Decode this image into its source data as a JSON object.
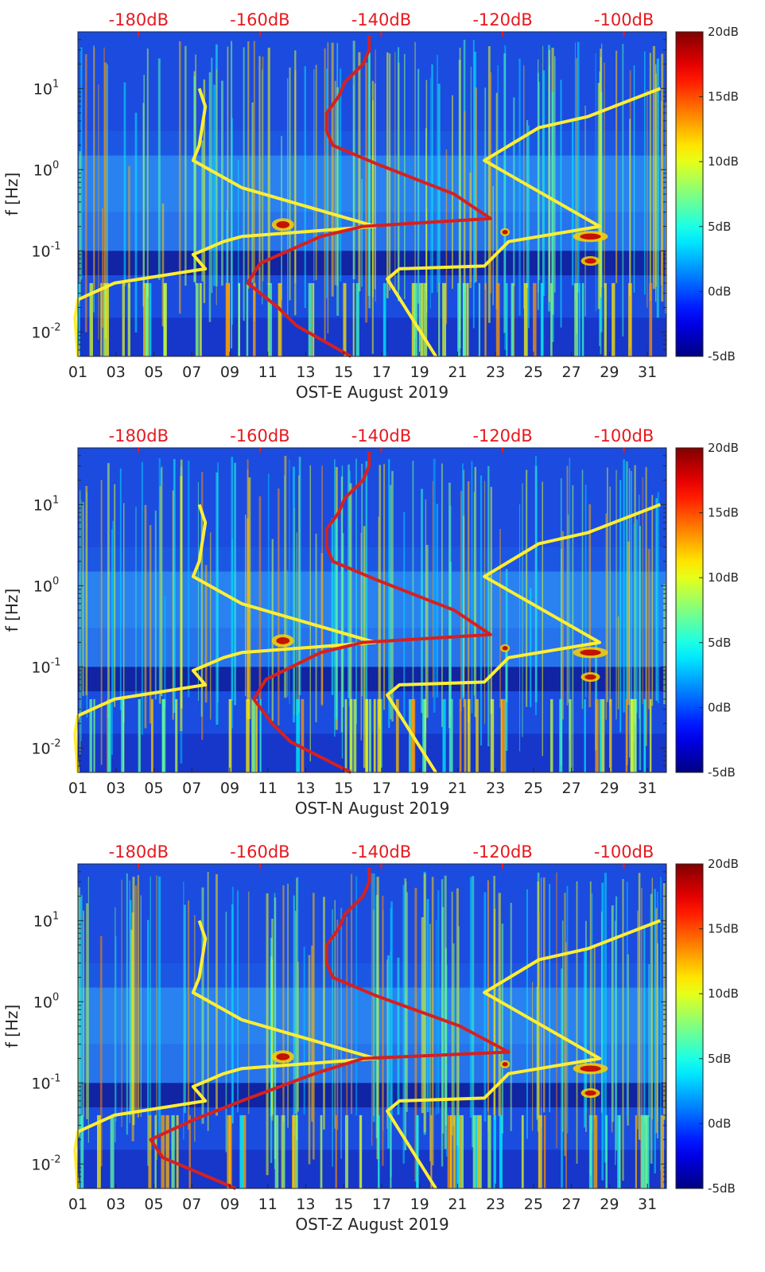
{
  "chart_data": [
    {
      "type": "heatmap",
      "xlabel": "OST-E August 2019",
      "ylabel": "f [Hz]",
      "x_ticks": [
        "01",
        "03",
        "05",
        "07",
        "09",
        "11",
        "13",
        "15",
        "17",
        "19",
        "21",
        "23",
        "25",
        "27",
        "29",
        "31"
      ],
      "xlim": [
        1,
        32
      ],
      "ylim": [
        0.005,
        50
      ],
      "y_scale": "log",
      "y_ticks": [
        "10^-2",
        "10^-1",
        "10^0",
        "10^1"
      ],
      "top_axis_ticks": [
        "-180dB",
        "-160dB",
        "-140dB",
        "-120dB",
        "-100dB"
      ],
      "top_axis_range": [
        -190,
        -93
      ],
      "colorbar": {
        "ticks": [
          "20dB",
          "15dB",
          "10dB",
          "5dB",
          "0dB",
          "-5dB"
        ],
        "range": [
          -5,
          20
        ],
        "colormap": "jet"
      },
      "series": [
        {
          "color": "#ffee33",
          "points": [
            [
              -190,
              0.005
            ],
            [
              -190.5,
              0.015
            ],
            [
              -190,
              0.025
            ],
            [
              -184,
              0.04
            ],
            [
              -169,
              0.06
            ],
            [
              -171,
              0.09
            ],
            [
              -166,
              0.13
            ],
            [
              -163,
              0.15
            ],
            [
              -141,
              0.2
            ],
            [
              -163,
              0.6
            ],
            [
              -171,
              1.3
            ],
            [
              -170,
              2
            ],
            [
              -169,
              6
            ],
            [
              -170,
              10
            ]
          ]
        },
        {
          "color": "#ffee33",
          "points": [
            [
              -131,
              0.005
            ],
            [
              -139,
              0.045
            ],
            [
              -137,
              0.06
            ],
            [
              -123,
              0.065
            ],
            [
              -119,
              0.13
            ],
            [
              -104,
              0.2
            ],
            [
              -123,
              1.3
            ],
            [
              -114,
              3.3
            ],
            [
              -106,
              4.5
            ],
            [
              -94,
              10
            ]
          ]
        },
        {
          "color": "#d62020",
          "points": [
            [
              -145,
              0.005
            ],
            [
              -154,
              0.012
            ],
            [
              -157,
              0.02
            ],
            [
              -162,
              0.04
            ],
            [
              -160,
              0.07
            ],
            [
              -150,
              0.15
            ],
            [
              -143,
              0.2
            ],
            [
              -122,
              0.25
            ],
            [
              -128,
              0.5
            ],
            [
              -141,
              1.2
            ],
            [
              -148,
              2
            ],
            [
              -149,
              3
            ],
            [
              -149,
              5
            ],
            [
              -147,
              8
            ],
            [
              -146,
              12
            ],
            [
              -143,
              20
            ],
            [
              -142,
              30
            ],
            [
              -142,
              45
            ]
          ]
        }
      ]
    },
    {
      "type": "heatmap",
      "xlabel": "OST-N August 2019",
      "ylabel": "f [Hz]",
      "x_ticks": [
        "01",
        "03",
        "05",
        "07",
        "09",
        "11",
        "13",
        "15",
        "17",
        "19",
        "21",
        "23",
        "25",
        "27",
        "29",
        "31"
      ],
      "xlim": [
        1,
        32
      ],
      "ylim": [
        0.005,
        50
      ],
      "y_scale": "log",
      "y_ticks": [
        "10^-2",
        "10^-1",
        "10^0",
        "10^1"
      ],
      "top_axis_ticks": [
        "-180dB",
        "-160dB",
        "-140dB",
        "-120dB",
        "-100dB"
      ],
      "top_axis_range": [
        -190,
        -93
      ],
      "colorbar": {
        "ticks": [
          "20dB",
          "15dB",
          "10dB",
          "5dB",
          "0dB",
          "-5dB"
        ],
        "range": [
          -5,
          20
        ],
        "colormap": "jet"
      },
      "series": [
        {
          "color": "#ffee33",
          "points": [
            [
              -190,
              0.005
            ],
            [
              -190.5,
              0.015
            ],
            [
              -190,
              0.025
            ],
            [
              -184,
              0.04
            ],
            [
              -169,
              0.06
            ],
            [
              -171,
              0.09
            ],
            [
              -166,
              0.13
            ],
            [
              -163,
              0.15
            ],
            [
              -141,
              0.2
            ],
            [
              -163,
              0.6
            ],
            [
              -171,
              1.3
            ],
            [
              -170,
              2
            ],
            [
              -169,
              6
            ],
            [
              -170,
              10
            ]
          ]
        },
        {
          "color": "#ffee33",
          "points": [
            [
              -131,
              0.005
            ],
            [
              -139,
              0.045
            ],
            [
              -137,
              0.06
            ],
            [
              -123,
              0.065
            ],
            [
              -119,
              0.13
            ],
            [
              -104,
              0.2
            ],
            [
              -123,
              1.3
            ],
            [
              -114,
              3.3
            ],
            [
              -106,
              4.5
            ],
            [
              -94,
              10
            ]
          ]
        },
        {
          "color": "#d62020",
          "points": [
            [
              -145,
              0.005
            ],
            [
              -155,
              0.012
            ],
            [
              -158,
              0.02
            ],
            [
              -161,
              0.04
            ],
            [
              -159,
              0.07
            ],
            [
              -150,
              0.15
            ],
            [
              -143,
              0.2
            ],
            [
              -122,
              0.25
            ],
            [
              -128,
              0.5
            ],
            [
              -141,
              1.2
            ],
            [
              -148,
              2
            ],
            [
              -149,
              3
            ],
            [
              -149,
              5
            ],
            [
              -147,
              8
            ],
            [
              -146,
              12
            ],
            [
              -143,
              20
            ],
            [
              -142,
              30
            ],
            [
              -142,
              45
            ]
          ]
        }
      ]
    },
    {
      "type": "heatmap",
      "xlabel": "OST-Z August 2019",
      "ylabel": "f [Hz]",
      "x_ticks": [
        "01",
        "03",
        "05",
        "07",
        "09",
        "11",
        "13",
        "15",
        "17",
        "19",
        "21",
        "23",
        "25",
        "27",
        "29",
        "31"
      ],
      "xlim": [
        1,
        32
      ],
      "ylim": [
        0.005,
        50
      ],
      "y_scale": "log",
      "y_ticks": [
        "10^-2",
        "10^-1",
        "10^0",
        "10^1"
      ],
      "top_axis_ticks": [
        "-180dB",
        "-160dB",
        "-140dB",
        "-120dB",
        "-100dB"
      ],
      "top_axis_range": [
        -190,
        -93
      ],
      "colorbar": {
        "ticks": [
          "20dB",
          "15dB",
          "10dB",
          "5dB",
          "0dB",
          "-5dB"
        ],
        "range": [
          -5,
          20
        ],
        "colormap": "jet"
      },
      "series": [
        {
          "color": "#ffee33",
          "points": [
            [
              -190,
              0.005
            ],
            [
              -190.5,
              0.015
            ],
            [
              -190,
              0.025
            ],
            [
              -184,
              0.04
            ],
            [
              -169,
              0.06
            ],
            [
              -171,
              0.09
            ],
            [
              -166,
              0.13
            ],
            [
              -163,
              0.15
            ],
            [
              -141,
              0.2
            ],
            [
              -163,
              0.6
            ],
            [
              -171,
              1.3
            ],
            [
              -170,
              2
            ],
            [
              -169,
              6
            ],
            [
              -170,
              10
            ]
          ]
        },
        {
          "color": "#ffee33",
          "points": [
            [
              -131,
              0.005
            ],
            [
              -139,
              0.045
            ],
            [
              -137,
              0.06
            ],
            [
              -123,
              0.065
            ],
            [
              -119,
              0.13
            ],
            [
              -104,
              0.2
            ],
            [
              -123,
              1.3
            ],
            [
              -114,
              3.3
            ],
            [
              -106,
              4.5
            ],
            [
              -94,
              10
            ]
          ]
        },
        {
          "color": "#d62020",
          "points": [
            [
              -164,
              0.005
            ],
            [
              -176,
              0.012
            ],
            [
              -178,
              0.02
            ],
            [
              -171,
              0.035
            ],
            [
              -163,
              0.06
            ],
            [
              -151,
              0.13
            ],
            [
              -143,
              0.2
            ],
            [
              -119,
              0.24
            ],
            [
              -127,
              0.5
            ],
            [
              -141,
              1.2
            ],
            [
              -148,
              2
            ],
            [
              -149,
              3
            ],
            [
              -149,
              5
            ],
            [
              -147,
              8
            ],
            [
              -146,
              12
            ],
            [
              -143,
              20
            ],
            [
              -142,
              30
            ],
            [
              -142,
              45
            ]
          ]
        }
      ]
    }
  ]
}
